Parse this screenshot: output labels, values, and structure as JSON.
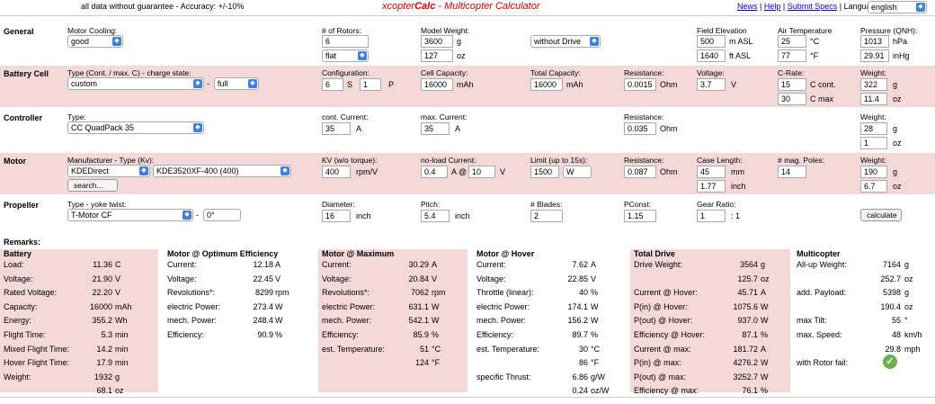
{
  "top": {
    "disclaimer": "all data without guarantee - Accuracy: +/-10%",
    "title_a": "xcopter",
    "title_b": "Calc",
    "title_c": " - Multicopter Calculator",
    "news": "News",
    "help": "Help",
    "submit": "Submit Specs",
    "language_label": "Language:",
    "language": "english"
  },
  "general": {
    "label": "General",
    "motor_cooling_label": "Motor Cooling:",
    "motor_cooling": "good",
    "rotors_label": "# of Rotors:",
    "rotors": "6",
    "frame": "flat",
    "weight_label": "Model Weight:",
    "weight_g": "3600",
    "weight_g_unit": "g",
    "weight_oz": "127",
    "weight_oz_unit": "oz",
    "drive": "without Drive",
    "elev_label": "Field Elevation",
    "elev_m": "500",
    "elev_m_unit": "m ASL",
    "elev_ft": "1640",
    "elev_ft_unit": "ft ASL",
    "temp_label": "Air Temperature",
    "temp_c": "25",
    "temp_c_unit": "°C",
    "temp_f": "77",
    "temp_f_unit": "°F",
    "press_label": "Pressure (QNH):",
    "press_hpa": "1013",
    "press_hpa_unit": "hPa",
    "press_inhg": "29.91",
    "press_inhg_unit": "inHg"
  },
  "battery": {
    "label": "Battery Cell",
    "type_label": "Type (Cont. / max. C) - charge state:",
    "type": "custom",
    "dash": "-",
    "charge": "full",
    "config_label": "Configuration:",
    "s": "6",
    "s_unit": "S",
    "p": "1",
    "p_unit": "P",
    "cap_label": "Cell Capacity:",
    "cap": "16000",
    "cap_unit": "mAh",
    "total_label": "Total Capacity:",
    "total": "16000",
    "total_unit": "mAh",
    "res_label": "Resistance:",
    "res": "0.0015",
    "res_unit": "Ohm",
    "volt_label": "Voltage:",
    "volt": "3.7",
    "volt_unit": "V",
    "crate_label": "C-Rate:",
    "c_cont": "15",
    "c_cont_unit": "C cont.",
    "c_max": "30",
    "c_max_unit": "C max",
    "w_label": "Weight:",
    "w_g": "322",
    "w_g_unit": "g",
    "w_oz": "11.4",
    "w_oz_unit": "oz"
  },
  "controller": {
    "label": "Controller",
    "type_label": "Type:",
    "type": "CC QuadPack 35",
    "cont_label": "cont. Current:",
    "cont": "35",
    "cont_unit": "A",
    "max_label": "max. Current:",
    "max": "35",
    "max_unit": "A",
    "res_label": "Resistance:",
    "res": "0.035",
    "res_unit": "Ohm",
    "w_label": "Weight:",
    "w_g": "28",
    "w_g_unit": "g",
    "w_oz": "1",
    "w_oz_unit": "oz"
  },
  "motor": {
    "label": "Motor",
    "mfr_label": "Manufacturer - Type (Kv):",
    "mfr": "KDEDirect",
    "model": "KDE3520XF-400 (400)",
    "search": "search...",
    "kv_label": "KV (w/o torque):",
    "kv": "400",
    "kv_unit": "rpm/V",
    "noload_label": "no-load Current:",
    "noload": "0.4",
    "noload_unit": "A @",
    "noload_v": "10",
    "noload_v_unit": "V",
    "limit_label": "Limit (up to 15s):",
    "limit": "1500",
    "limit_unit": "W",
    "res_label": "Resistance:",
    "res": "0.087",
    "res_unit": "Ohm",
    "case_label": "Case Length:",
    "case_mm": "45",
    "case_mm_unit": "mm",
    "case_in": "1.77",
    "case_in_unit": "inch",
    "poles_label": "# mag. Poles:",
    "poles": "14",
    "w_label": "Weight:",
    "w_g": "190",
    "w_g_unit": "g",
    "w_oz": "6.7",
    "w_oz_unit": "oz"
  },
  "propeller": {
    "label": "Propeller",
    "type_label": "Type - yoke twist:",
    "type": "T-Motor CF",
    "dash": "-",
    "twist": "0°",
    "dia_label": "Diameter:",
    "dia": "16",
    "dia_unit": "inch",
    "pitch_label": "Pitch:",
    "pitch": "5.4",
    "pitch_unit": "inch",
    "blades_label": "# Blades:",
    "blades": "2",
    "pconst_label": "PConst:",
    "pconst": "1.15",
    "gear_label": "Gear Ratio:",
    "gear": "1",
    "gear_unit": ": 1",
    "calc": "calculate"
  },
  "remarks": "Remarks:",
  "p_batt": {
    "title": "Battery",
    "rows": [
      [
        "Load:",
        "11.36",
        "C"
      ],
      [
        "Voltage:",
        "21.90",
        "V"
      ],
      [
        "Rated Voltage:",
        "22.20",
        "V"
      ],
      [
        "Capacity:",
        "16000",
        "mAh"
      ],
      [
        "Energy:",
        "355.2",
        "Wh"
      ],
      [
        "Flight Time:",
        "5.3",
        "min"
      ],
      [
        "Mixed Flight Time:",
        "14.2",
        "min"
      ],
      [
        "Hover Flight Time:",
        "17.9",
        "min"
      ],
      [
        "Weight:",
        "1932",
        "g"
      ],
      [
        "",
        "68.1",
        "oz"
      ]
    ]
  },
  "p_opt": {
    "title": "Motor @ Optimum Efficiency",
    "rows": [
      [
        "Current:",
        "12.18",
        "A"
      ],
      [
        "Voltage:",
        "22.45",
        "V"
      ],
      [
        "Revolutions*:",
        "8299",
        "rpm"
      ],
      [
        "electric Power:",
        "273.4",
        "W"
      ],
      [
        "mech. Power:",
        "248.4",
        "W"
      ],
      [
        "Efficiency:",
        "90.9",
        "%"
      ]
    ]
  },
  "p_max": {
    "title": "Motor @ Maximum",
    "rows": [
      [
        "Current:",
        "30.29",
        "A"
      ],
      [
        "Voltage:",
        "20.84",
        "V"
      ],
      [
        "Revolutions*:",
        "7062",
        "rpm"
      ],
      [
        "electric Power:",
        "631.1",
        "W"
      ],
      [
        "mech. Power:",
        "542.1",
        "W"
      ],
      [
        "Efficiency:",
        "85.9",
        "%"
      ],
      [
        "est. Temperature:",
        "51",
        "°C"
      ],
      [
        "",
        "124",
        "°F"
      ]
    ]
  },
  "p_hov": {
    "title": "Motor @ Hover",
    "rows": [
      [
        "Current:",
        "7.62",
        "A"
      ],
      [
        "Voltage:",
        "22.85",
        "V"
      ],
      [
        "Throttle (linear):",
        "40",
        "%"
      ],
      [
        "electric Power:",
        "174.1",
        "W"
      ],
      [
        "mech. Power:",
        "156.2",
        "W"
      ],
      [
        "Efficiency:",
        "89.7",
        "%"
      ],
      [
        "est. Temperature:",
        "30",
        "°C"
      ],
      [
        "",
        "86",
        "°F"
      ],
      [
        "specific Thrust:",
        "6.86",
        "g/W"
      ],
      [
        "",
        "0.24",
        "oz/W"
      ]
    ]
  },
  "p_tot": {
    "title": "Total Drive",
    "rows": [
      [
        "Drive Weight:",
        "3564",
        "g"
      ],
      [
        "",
        "125.7",
        "oz"
      ],
      [
        "Current @ Hover:",
        "45.71",
        "A"
      ],
      [
        "P(in) @ Hover:",
        "1075.6",
        "W"
      ],
      [
        "P(out) @ Hover:",
        "937.0",
        "W"
      ],
      [
        "Efficiency @ Hover:",
        "87.1",
        "%"
      ],
      [
        "Current @ max:",
        "181.72",
        "A"
      ],
      [
        "P(in) @ max:",
        "4276.2",
        "W"
      ],
      [
        "P(out) @ max:",
        "3252.7",
        "W"
      ],
      [
        "Efficiency @ max:",
        "76.1",
        "%"
      ]
    ]
  },
  "p_multi": {
    "title": "Multicopter",
    "rows": [
      [
        "All-up Weight:",
        "7164",
        "g"
      ],
      [
        "",
        "252.7",
        "oz"
      ],
      [
        "add. Payload:",
        "5398",
        "g"
      ],
      [
        "",
        "190.4",
        "oz"
      ],
      [
        "max Tilt:",
        "55",
        "°"
      ],
      [
        "max. Speed:",
        "48",
        "km/h"
      ],
      [
        "",
        "29.8",
        "mph"
      ],
      [
        "with Rotor fail:",
        "",
        ""
      ]
    ]
  },
  "icons": {
    "check": "checkmark-icon",
    "dropdown": "chevron-updown-icon"
  }
}
